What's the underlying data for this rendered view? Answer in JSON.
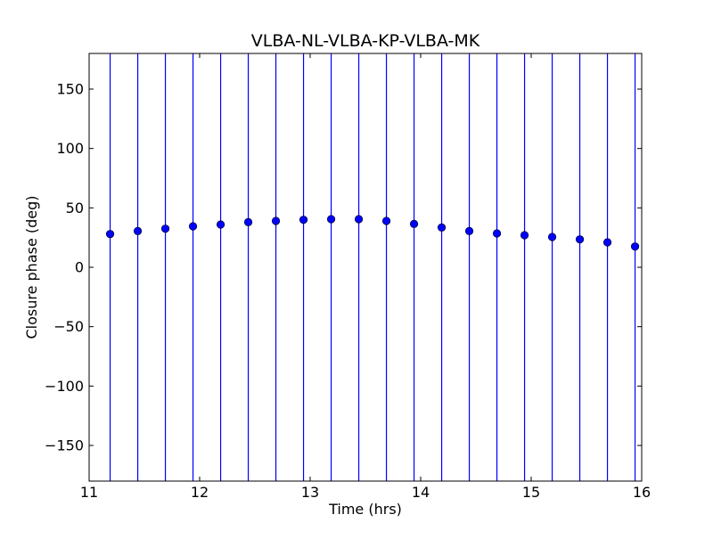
{
  "chart_data": {
    "type": "scatter",
    "title": "VLBA-NL-VLBA-KP-VLBA-MK",
    "xlabel": "Time (hrs)",
    "ylabel": "Closure phase (deg)",
    "xlim": [
      11,
      16
    ],
    "ylim": [
      -180,
      180
    ],
    "xticks": [
      11,
      12,
      13,
      14,
      15,
      16
    ],
    "xtick_labels": [
      "11",
      "12",
      "13",
      "14",
      "15",
      "16"
    ],
    "yticks": [
      -150,
      -100,
      -50,
      0,
      50,
      100,
      150
    ],
    "ytick_labels": [
      "−150",
      "−100",
      "−50",
      "0",
      "50",
      "100",
      "150"
    ],
    "grid": false,
    "error_bars": "full range (-180 to 180)",
    "marker_color": "#0000ff",
    "errorbar_color": "#0000ff",
    "series": [
      {
        "x": [
          11.19,
          11.44,
          11.69,
          11.94,
          12.19,
          12.44,
          12.69,
          12.94,
          13.19,
          13.44,
          13.69,
          13.94,
          14.19,
          14.44,
          14.69,
          14.94,
          15.19,
          15.44,
          15.69,
          15.94
        ],
        "y": [
          28,
          30.5,
          32.5,
          34.5,
          36,
          38,
          39,
          40,
          40.5,
          40.5,
          39,
          36.5,
          33.5,
          30.5,
          28.5,
          27,
          25.5,
          23.5,
          21,
          17.5
        ]
      }
    ]
  }
}
